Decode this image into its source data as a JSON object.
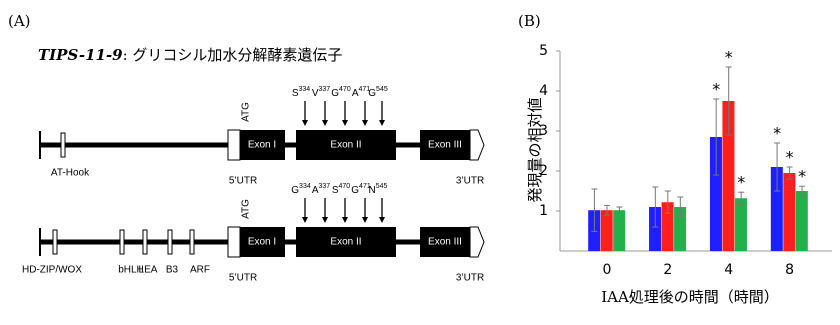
{
  "panel_a": {
    "label": "(A)",
    "title_gene": "TIPS-11-9",
    "title_rest": ": グリコシル加水分解酵素遺伝子",
    "genes": [
      {
        "atg": "ATG",
        "exons": [
          "Exon I",
          "Exon II",
          "Exon III"
        ],
        "utr5": "5’UTR",
        "utr3": "3’UTR",
        "residues": [
          {
            "aa": "S",
            "pos": "334"
          },
          {
            "aa": "V",
            "pos": "337"
          },
          {
            "aa": "G",
            "pos": "470"
          },
          {
            "aa": "A",
            "pos": "471"
          },
          {
            "aa": "G",
            "pos": "545"
          }
        ],
        "domains": [
          "AT-Hook"
        ]
      },
      {
        "atg": "ATG",
        "exons": [
          "Exon I",
          "Exon II",
          "Exon III"
        ],
        "utr5": "5’UTR",
        "utr3": "3’UTR",
        "residues": [
          {
            "aa": "G",
            "pos": "334"
          },
          {
            "aa": "A",
            "pos": "337"
          },
          {
            "aa": "S",
            "pos": "470"
          },
          {
            "aa": "G",
            "pos": "471"
          },
          {
            "aa": "N",
            "pos": "545"
          }
        ],
        "domains": [
          "HD-ZIP/WOX",
          "bHLH",
          "LEA",
          "B3",
          "ARF"
        ]
      }
    ]
  },
  "chart_data": {
    "type": "bar",
    "panel_label": "(B)",
    "x_label": "IAA処理後の時間（時間）",
    "y_label": "発現量の相対値",
    "categories": [
      "0",
      "2",
      "4",
      "8"
    ],
    "ylim": [
      0,
      5
    ],
    "yticks": [
      1,
      2,
      3,
      4,
      5
    ],
    "grid": false,
    "series": [
      {
        "color": "#1f1fff",
        "values": [
          1.02,
          1.1,
          2.85,
          2.1
        ],
        "errors": [
          0.53,
          0.5,
          0.95,
          0.6
        ],
        "significance": [
          null,
          null,
          "*",
          "*"
        ]
      },
      {
        "color": "#ff1f1f",
        "values": [
          1.02,
          1.22,
          3.75,
          1.95
        ],
        "errors": [
          0.12,
          0.28,
          0.85,
          0.15
        ],
        "significance": [
          null,
          null,
          "*",
          "*"
        ]
      },
      {
        "color": "#22b04a",
        "values": [
          1.02,
          1.1,
          1.32,
          1.5
        ],
        "errors": [
          0.08,
          0.25,
          0.15,
          0.12
        ],
        "significance": [
          null,
          null,
          "*",
          "*"
        ]
      }
    ]
  }
}
